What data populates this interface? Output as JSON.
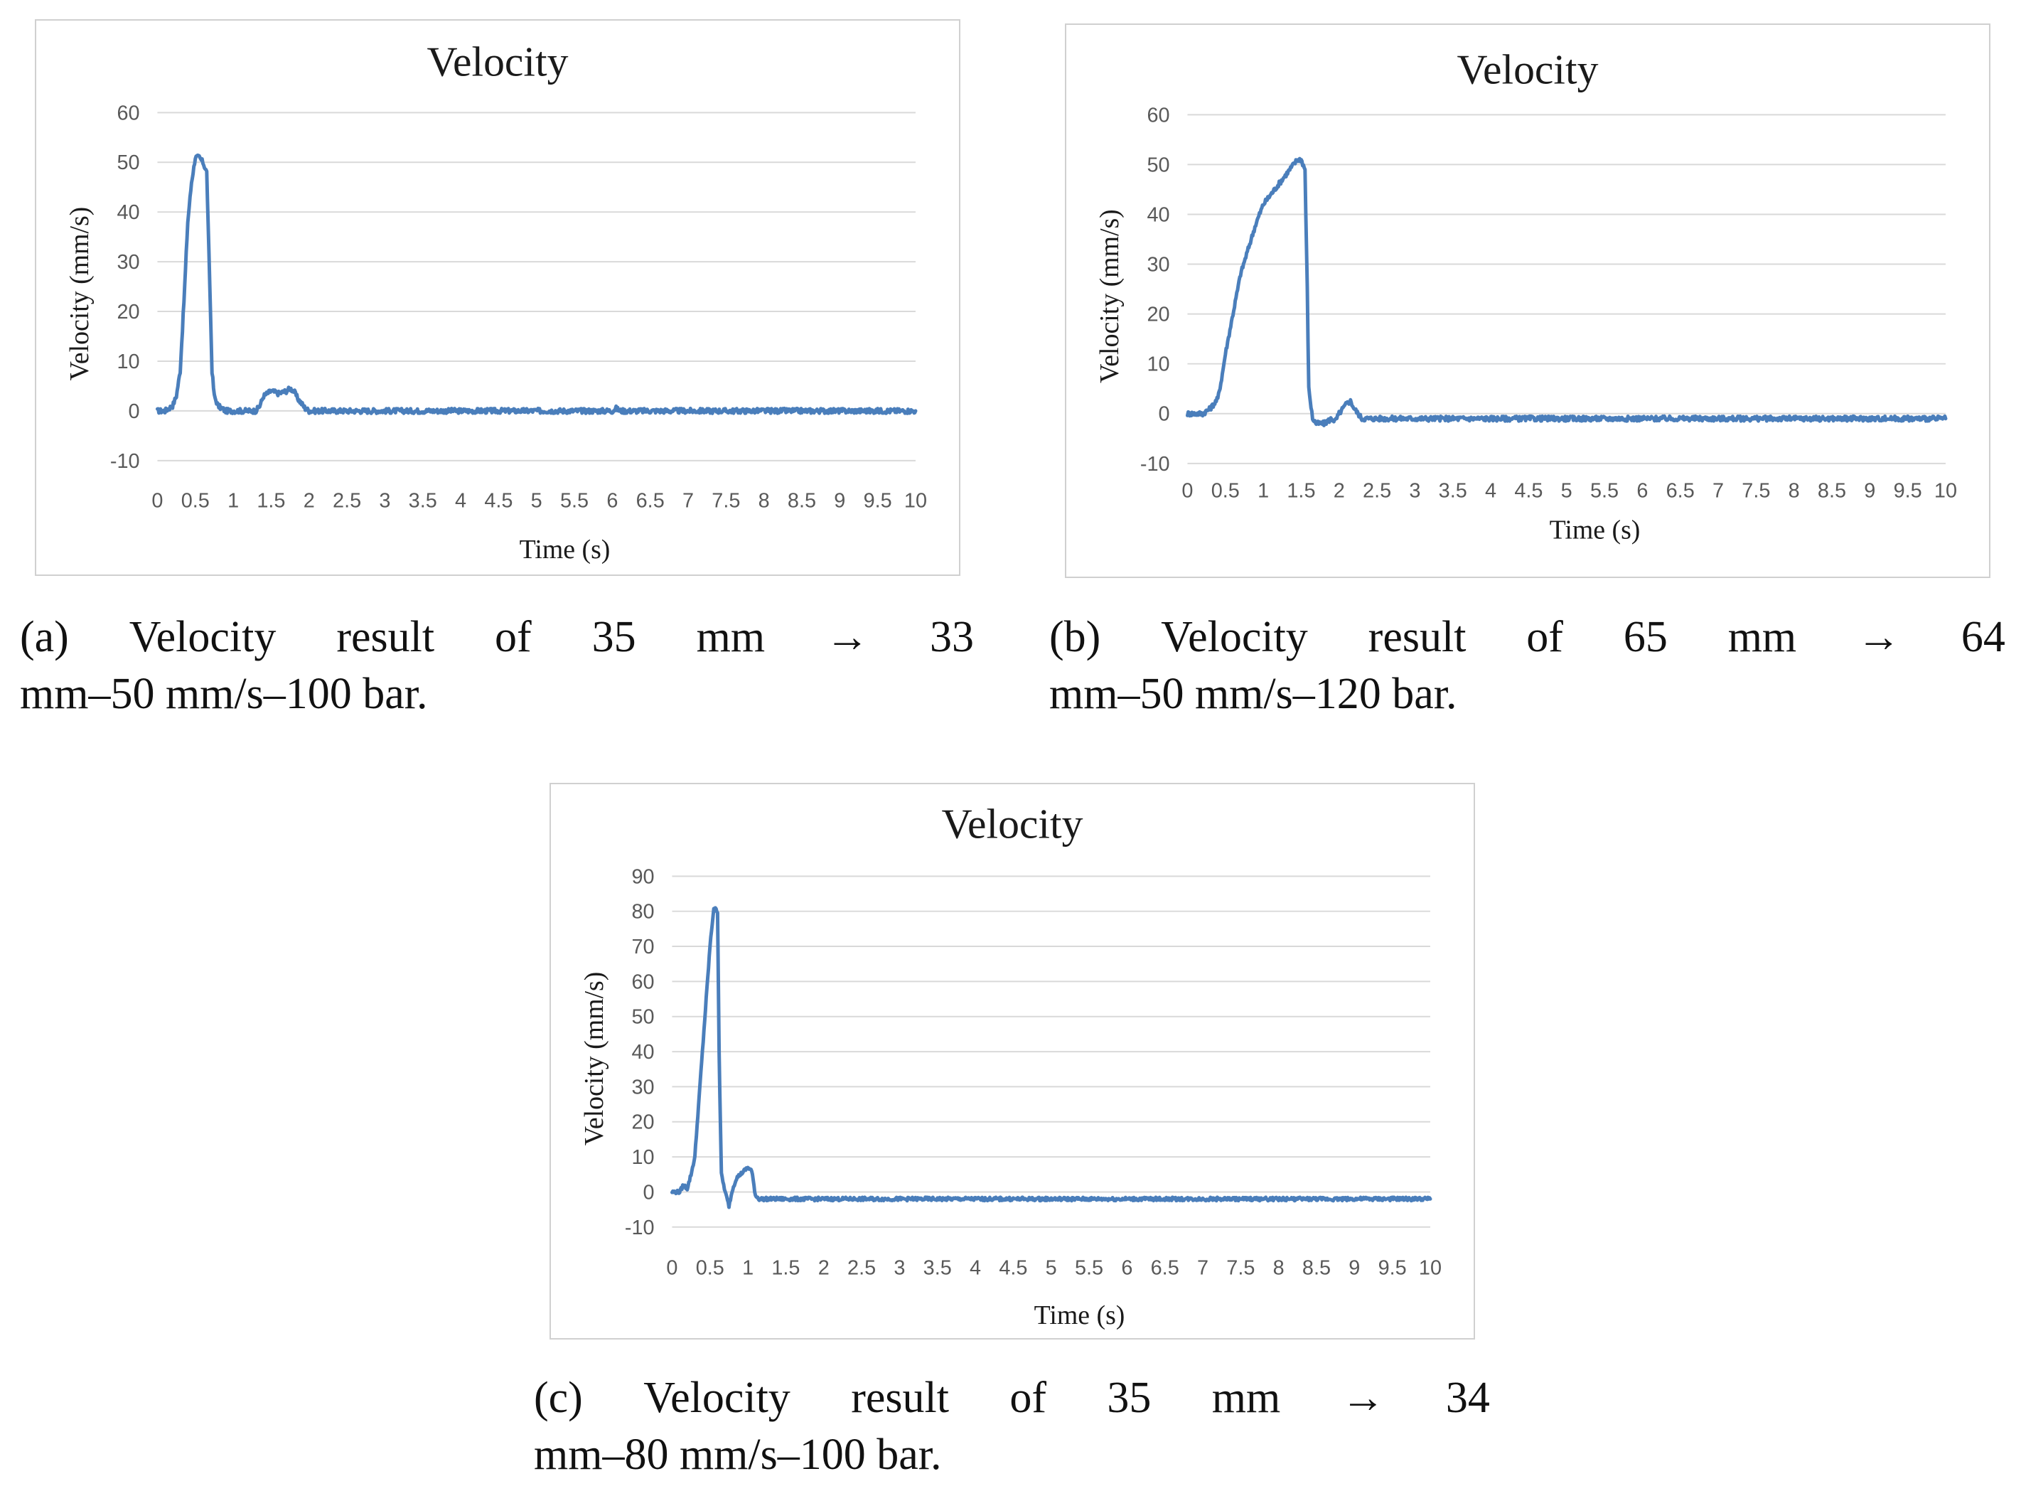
{
  "chart_data": [
    {
      "id": "a",
      "type": "line",
      "title": "Velocity",
      "xlabel": "Time (s)",
      "ylabel": "Velocity (mm/s)",
      "xlim": [
        0,
        10
      ],
      "ylim": [
        -10,
        60
      ],
      "x_ticks": [
        "0",
        "0.5",
        "1",
        "1.5",
        "2",
        "2.5",
        "3",
        "3.5",
        "4",
        "4.5",
        "5",
        "5.5",
        "6",
        "6.5",
        "7",
        "7.5",
        "8",
        "8.5",
        "9",
        "9.5",
        "10"
      ],
      "y_ticks": [
        "-10",
        "0",
        "10",
        "20",
        "30",
        "40",
        "50",
        "60"
      ],
      "grid": true,
      "series": [
        {
          "name": "Velocity",
          "color": "#4a7ebb",
          "x": [
            0,
            0.1,
            0.2,
            0.25,
            0.3,
            0.35,
            0.4,
            0.45,
            0.5,
            0.55,
            0.6,
            0.65,
            0.7,
            0.72,
            0.75,
            0.8,
            0.9,
            1.0,
            1.2,
            1.3,
            1.35,
            1.4,
            1.5,
            1.6,
            1.7,
            1.75,
            1.8,
            1.85,
            1.9,
            1.95,
            2.0,
            2.5,
            3,
            4,
            5,
            5.5,
            6,
            6.05,
            6.1,
            7,
            8,
            9,
            10
          ],
          "y": [
            0,
            0,
            1,
            3,
            8,
            22,
            38,
            46,
            51,
            51,
            50,
            48,
            20,
            8,
            3,
            1,
            0,
            0,
            0,
            0,
            1,
            3,
            4,
            3.5,
            4,
            4.5,
            4,
            2.5,
            1.5,
            0.5,
            0,
            0,
            0,
            0,
            0,
            0,
            0,
            0.5,
            0,
            0,
            0,
            0,
            0
          ]
        }
      ]
    },
    {
      "id": "b",
      "type": "line",
      "title": "Velocity",
      "xlabel": "Time (s)",
      "ylabel": "Velocity (mm/s)",
      "xlim": [
        0,
        10
      ],
      "ylim": [
        -10,
        60
      ],
      "x_ticks": [
        "0",
        "0.5",
        "1",
        "1.5",
        "2",
        "2.5",
        "3",
        "3.5",
        "4",
        "4.5",
        "5",
        "5.5",
        "6",
        "6.5",
        "7",
        "7.5",
        "8",
        "8.5",
        "9",
        "9.5",
        "10"
      ],
      "y_ticks": [
        "-10",
        "0",
        "10",
        "20",
        "30",
        "40",
        "50",
        "60"
      ],
      "grid": true,
      "series": [
        {
          "name": "Velocity",
          "color": "#4a7ebb",
          "x": [
            0,
            0.2,
            0.3,
            0.4,
            0.45,
            0.5,
            0.6,
            0.7,
            0.8,
            0.9,
            1.0,
            1.1,
            1.2,
            1.3,
            1.4,
            1.45,
            1.5,
            1.55,
            1.58,
            1.6,
            1.65,
            1.7,
            1.8,
            1.9,
            1.95,
            2.0,
            2.1,
            2.15,
            2.2,
            2.3,
            3,
            4,
            5,
            5.5,
            5.7,
            6,
            7,
            8,
            9,
            10
          ],
          "y": [
            0,
            0,
            1,
            3,
            7,
            12,
            20,
            28,
            33,
            38,
            42,
            44,
            46,
            48,
            50,
            51,
            51,
            49,
            25,
            5,
            -1,
            -2,
            -2,
            -1,
            -1.5,
            0,
            2,
            2.5,
            1,
            -1,
            -1,
            -1,
            -1,
            -1,
            -1,
            -1,
            -1,
            -1,
            -1,
            -1
          ]
        }
      ]
    },
    {
      "id": "c",
      "type": "line",
      "title": "Velocity",
      "xlabel": "Time (s)",
      "ylabel": "Velocity (mm/s)",
      "xlim": [
        0,
        10
      ],
      "ylim": [
        -10,
        90
      ],
      "x_ticks": [
        "0",
        "0.5",
        "1",
        "1.5",
        "2",
        "2.5",
        "3",
        "3.5",
        "4",
        "4.5",
        "5",
        "5.5",
        "6",
        "6.5",
        "7",
        "7.5",
        "8",
        "8.5",
        "9",
        "9.5",
        "10"
      ],
      "y_ticks": [
        "-10",
        "0",
        "10",
        "20",
        "30",
        "40",
        "50",
        "60",
        "70",
        "80",
        "90"
      ],
      "grid": true,
      "series": [
        {
          "name": "Velocity",
          "color": "#4a7ebb",
          "x": [
            0,
            0.1,
            0.15,
            0.2,
            0.25,
            0.3,
            0.35,
            0.4,
            0.45,
            0.5,
            0.55,
            0.6,
            0.62,
            0.65,
            0.7,
            0.75,
            0.8,
            0.85,
            0.9,
            0.95,
            1.0,
            1.05,
            1.1,
            1.15,
            1.2,
            1.5,
            2,
            3,
            4,
            5,
            6,
            7,
            8,
            9,
            10
          ],
          "y": [
            0,
            0,
            2,
            1,
            5,
            10,
            25,
            40,
            55,
            70,
            81,
            80,
            40,
            5,
            0,
            -4,
            1,
            4,
            5,
            6,
            7,
            6,
            -1,
            -2,
            -2,
            -2,
            -2,
            -2,
            -2,
            -2,
            -2,
            -2,
            -2,
            -2,
            -2
          ]
        }
      ]
    }
  ],
  "captions": {
    "a": {
      "line1": [
        "(a)",
        "Velocity",
        "result",
        "of",
        "35",
        "mm",
        "→",
        "33"
      ],
      "line2": "mm–50 mm/s–100 bar."
    },
    "b": {
      "line1": [
        "(b)",
        "Velocity",
        "result",
        "of",
        "65",
        "mm",
        "→",
        "64"
      ],
      "line2": "mm–50 mm/s–120 bar."
    },
    "c": {
      "line1": [
        "(c)",
        "Velocity",
        "result",
        "of",
        "35",
        "mm",
        "→",
        "34"
      ],
      "line2": "mm–80 mm/s–100 bar."
    }
  }
}
